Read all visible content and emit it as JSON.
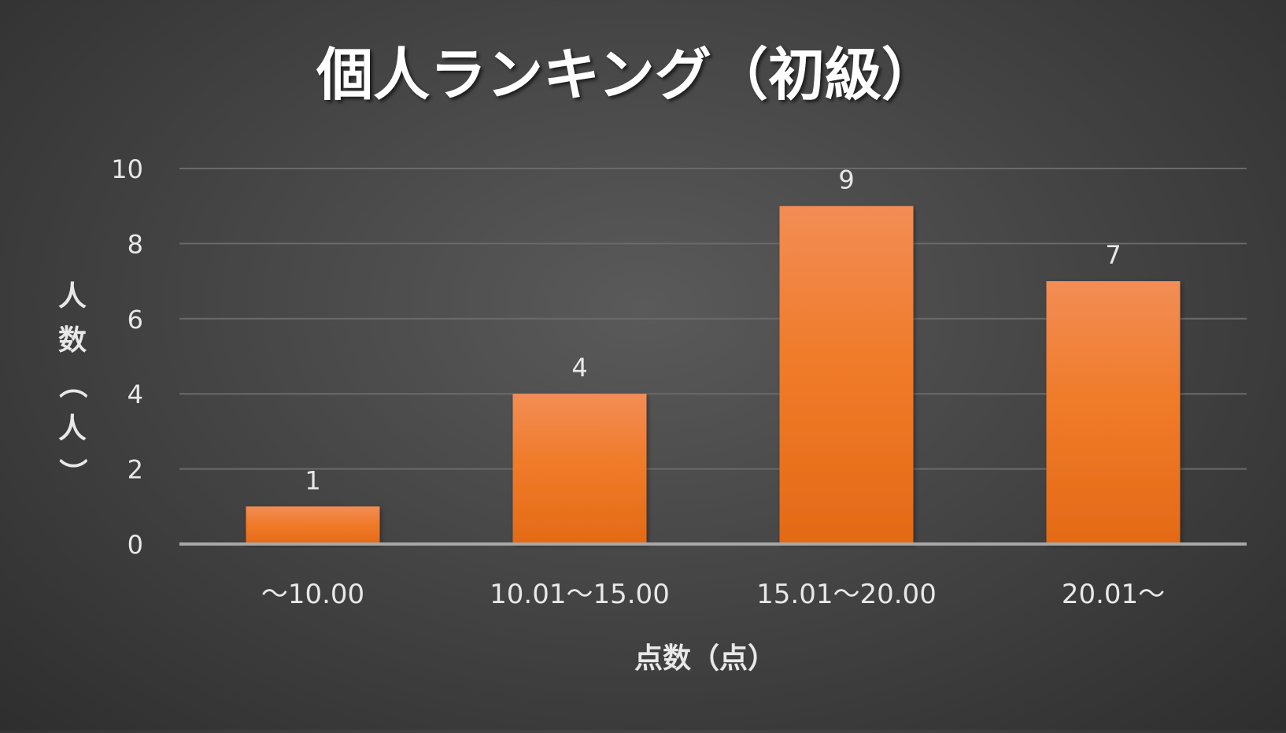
{
  "chart_data": {
    "type": "bar",
    "title": "個人ランキング（初級）",
    "xlabel": "点数（点）",
    "ylabel": "人数（人）",
    "categories": [
      "～10.00",
      "10.01～15.00",
      "15.01～20.00",
      "20.01～"
    ],
    "values": [
      1,
      4,
      9,
      7
    ],
    "ylim": [
      0,
      10
    ],
    "yticks": [
      0,
      2,
      4,
      6,
      8,
      10
    ],
    "grid": true,
    "data_labels": true,
    "colors": {
      "bar_top": "#f28d55",
      "bar_mid": "#f07b2a",
      "bar_bottom": "#e46a16",
      "text": "#e8e8e8",
      "title": "#ffffff",
      "grid": "#6a6a6a",
      "axis": "#a8a8a8"
    }
  }
}
